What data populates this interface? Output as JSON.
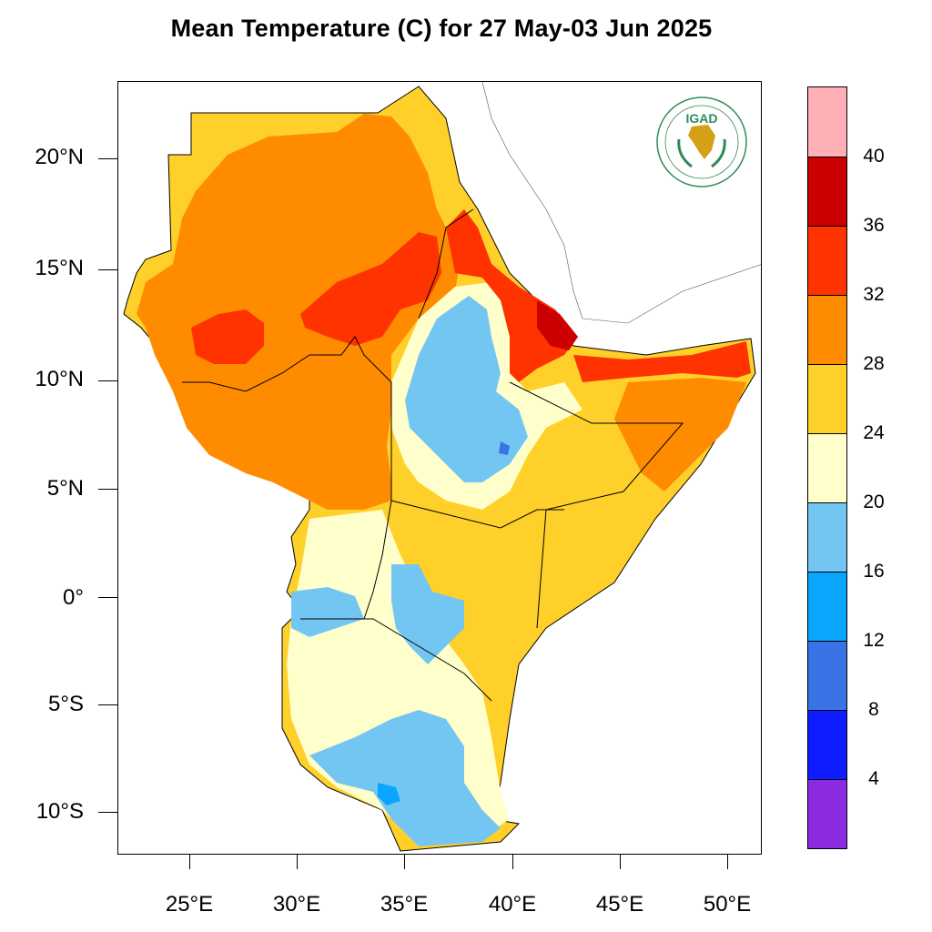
{
  "title": "Mean Temperature (C) for 27 May-03 Jun 2025",
  "logo": {
    "text": "IGAD",
    "ring_text": "INTERGOVERNMENTAL AUTHORITY ON DEVELOPMENT"
  },
  "axes": {
    "lat_labels": [
      "20°N",
      "15°N",
      "10°N",
      "5°N",
      "0°",
      "5°S",
      "10°S"
    ],
    "lon_labels": [
      "25°E",
      "30°E",
      "35°E",
      "40°E",
      "45°E",
      "50°E"
    ]
  },
  "colorbar": {
    "labels": [
      "40",
      "36",
      "32",
      "28",
      "24",
      "20",
      "16",
      "12",
      "8",
      "4"
    ],
    "colors": [
      "#ffb0b6",
      "#cc0000",
      "#ff3300",
      "#ff8c00",
      "#ffd02a",
      "#ffffcc",
      "#74c6f2",
      "#0aa5ff",
      "#3a73e6",
      "#0f1cff",
      "#8a2be2"
    ]
  }
}
